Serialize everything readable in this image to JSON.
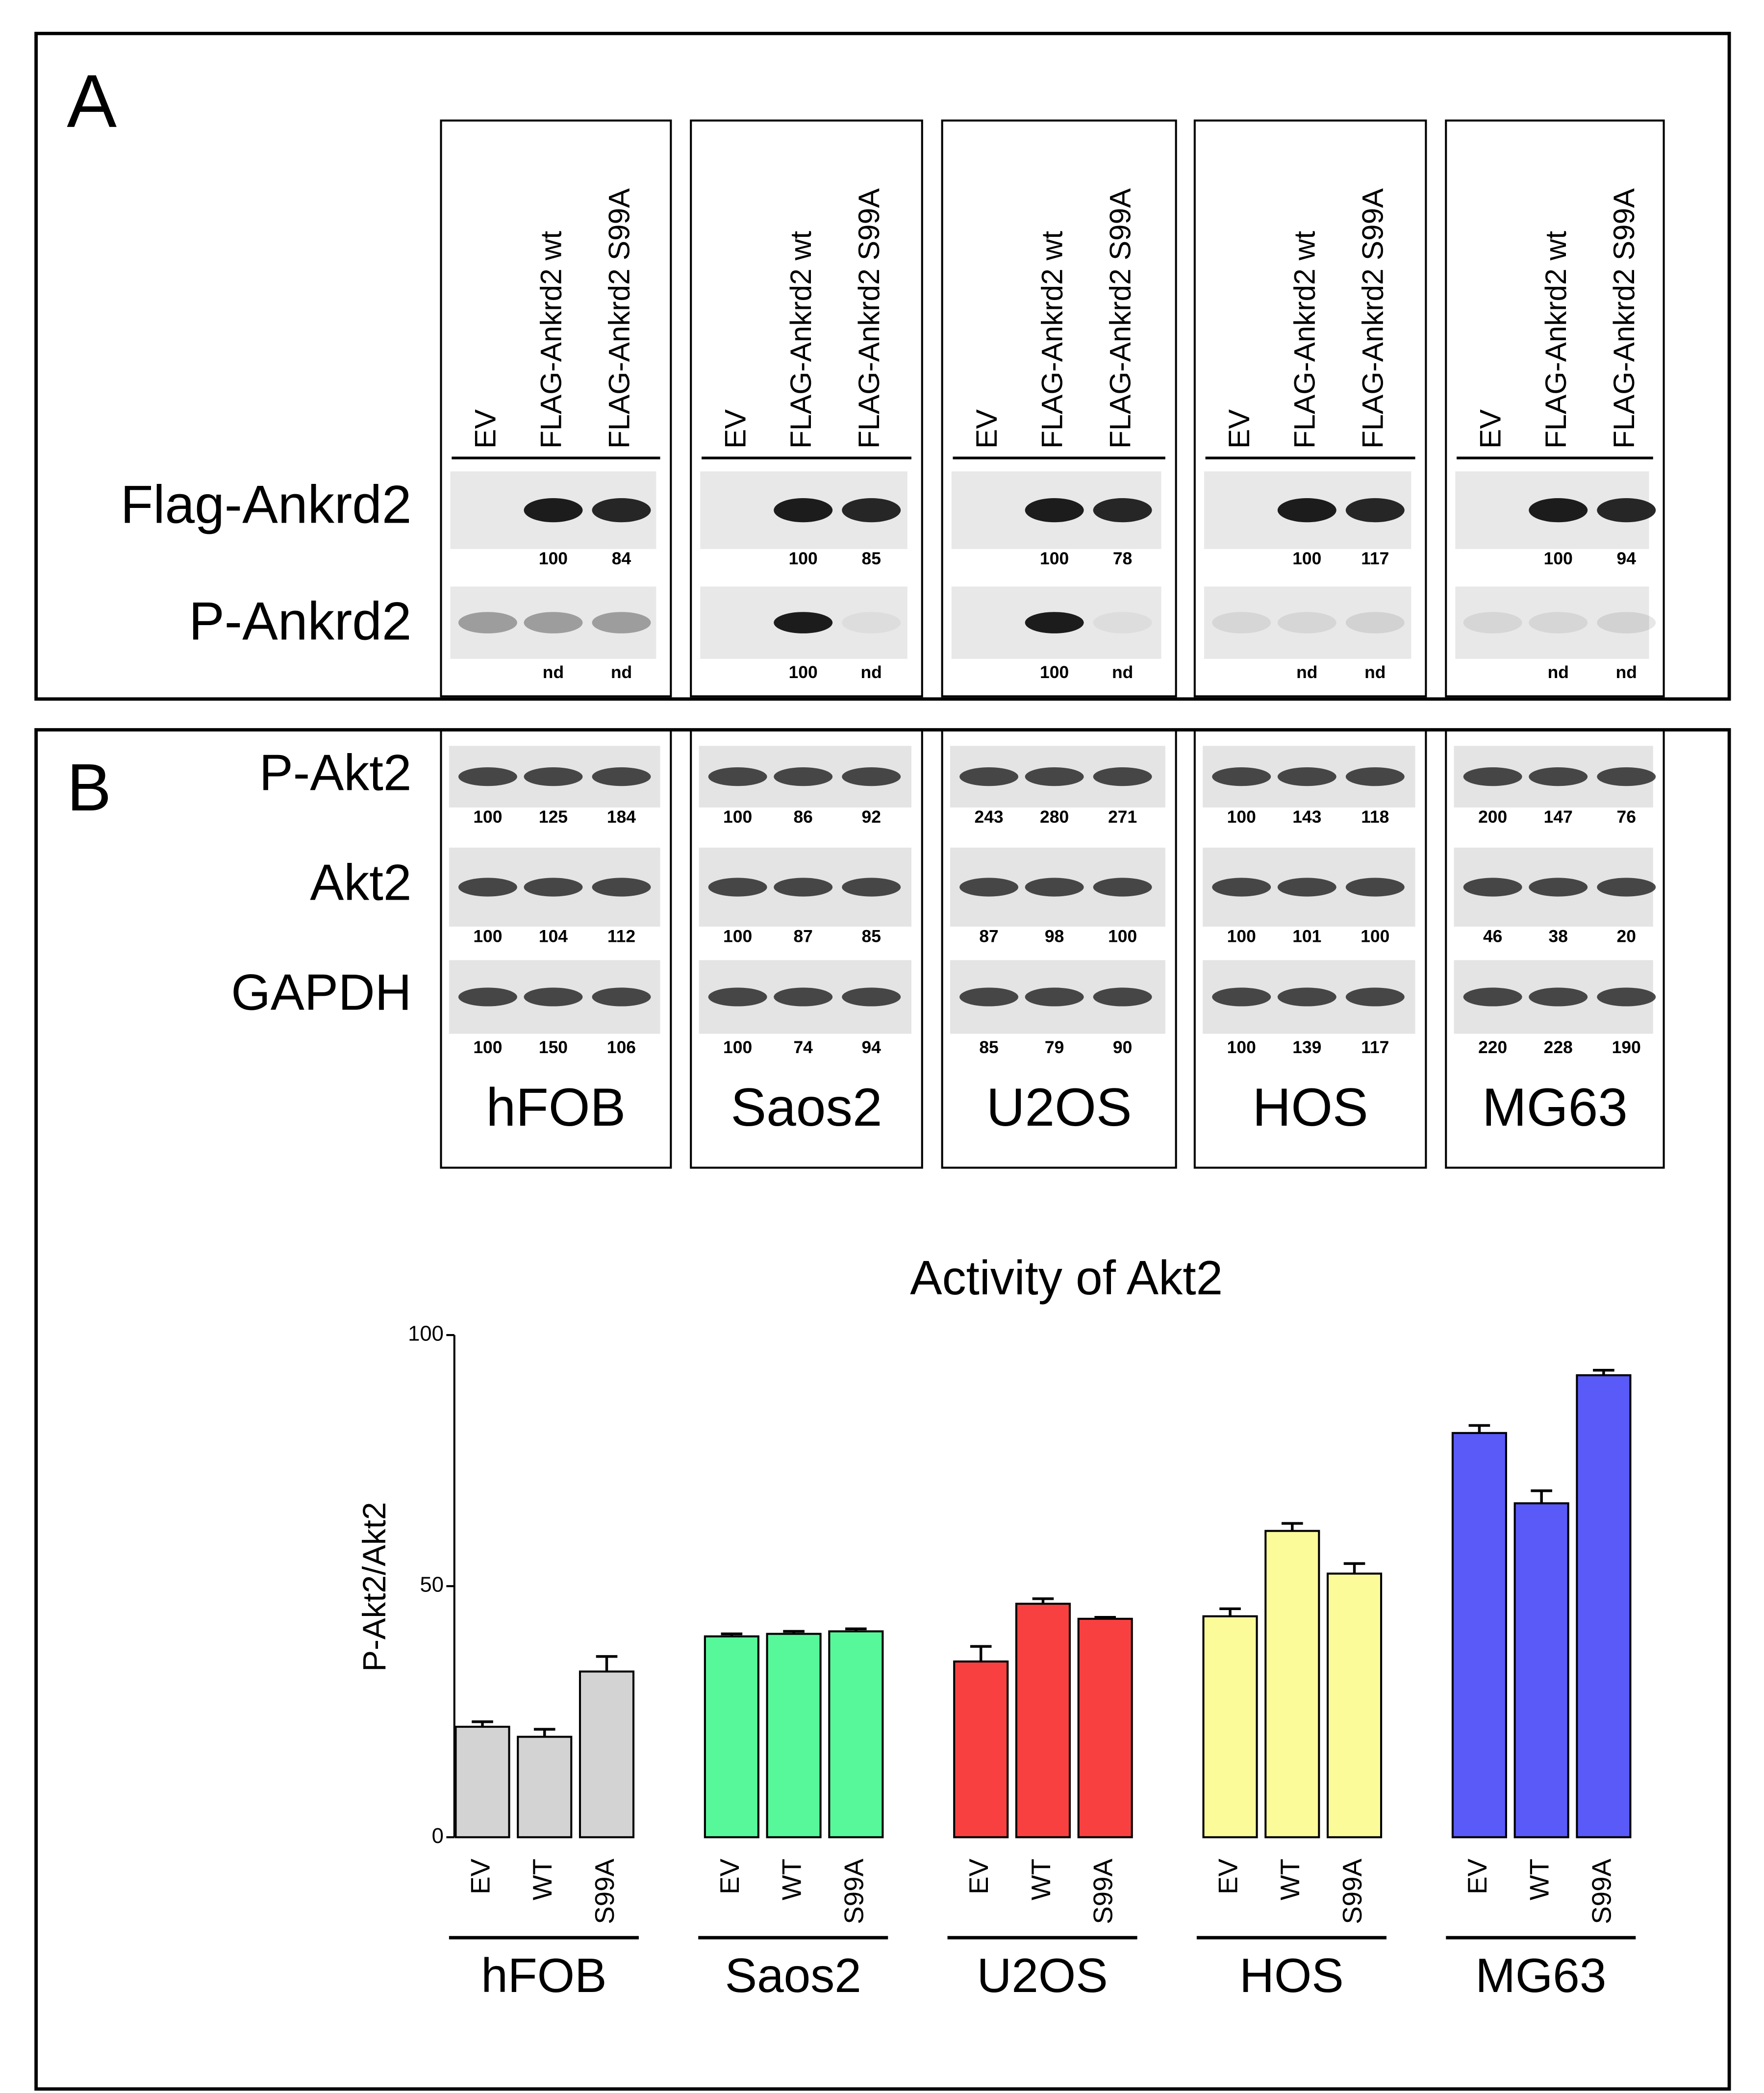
{
  "panel_a": {
    "label": "A",
    "lanes": [
      "EV",
      "FLAG-Ankrd2 wt",
      "FLAG-Ankrd2 S99A"
    ],
    "rows": [
      {
        "name": "Flag-Ankrd2",
        "quant": [
          [
            100,
            84
          ],
          [
            100,
            85
          ],
          [
            100,
            78
          ],
          [
            100,
            117
          ],
          [
            100,
            94
          ]
        ]
      },
      {
        "name": "P-Ankrd2",
        "quant": [
          [
            "nd",
            "nd"
          ],
          [
            100,
            "nd"
          ],
          [
            100,
            "nd"
          ],
          [
            "nd",
            "nd"
          ],
          [
            "nd",
            "nd"
          ]
        ]
      }
    ]
  },
  "panel_b": {
    "label": "B",
    "cell_lines": [
      "hFOB",
      "Saos2",
      "U2OS",
      "HOS",
      "MG63"
    ],
    "rows": [
      {
        "name": "P-Akt2",
        "quant": [
          [
            100,
            125,
            184
          ],
          [
            100,
            86,
            92
          ],
          [
            243,
            280,
            271
          ],
          [
            100,
            143,
            118
          ],
          [
            200,
            147,
            76
          ]
        ]
      },
      {
        "name": "Akt2",
        "quant": [
          [
            100,
            104,
            112
          ],
          [
            100,
            87,
            85
          ],
          [
            87,
            98,
            100
          ],
          [
            100,
            101,
            100
          ],
          [
            46,
            38,
            20
          ]
        ]
      },
      {
        "name": "GAPDH",
        "quant": [
          [
            100,
            150,
            106
          ],
          [
            100,
            74,
            94
          ],
          [
            85,
            79,
            90
          ],
          [
            100,
            139,
            117
          ],
          [
            220,
            228,
            190
          ]
        ]
      }
    ]
  },
  "chart_data": {
    "type": "bar",
    "title": "Activity of Akt2",
    "ylabel": "P-Akt2/Akt2",
    "bar_labels": [
      "EV",
      "WT",
      "S99A"
    ],
    "ylim": [
      0,
      100
    ],
    "yticks": [
      0,
      50,
      100
    ],
    "series": [
      {
        "name": "hFOB",
        "color": "#d3d3d3",
        "values": [
          22,
          20,
          33
        ],
        "errors": [
          1,
          1.5,
          3
        ]
      },
      {
        "name": "Saos2",
        "color": "#57f89a",
        "values": [
          40,
          40.5,
          41
        ],
        "errors": [
          0.5,
          0.5,
          0.5
        ]
      },
      {
        "name": "U2OS",
        "color": "#f94040",
        "values": [
          35,
          46.5,
          43.5
        ],
        "errors": [
          3,
          1,
          0.3
        ]
      },
      {
        "name": "HOS",
        "color": "#fbfb9a",
        "values": [
          44,
          61,
          52.5
        ],
        "errors": [
          1.5,
          1.5,
          2
        ]
      },
      {
        "name": "MG63",
        "color": "#5a5af8",
        "values": [
          80.5,
          66.5,
          92
        ],
        "errors": [
          1.5,
          2.5,
          1
        ]
      }
    ]
  }
}
